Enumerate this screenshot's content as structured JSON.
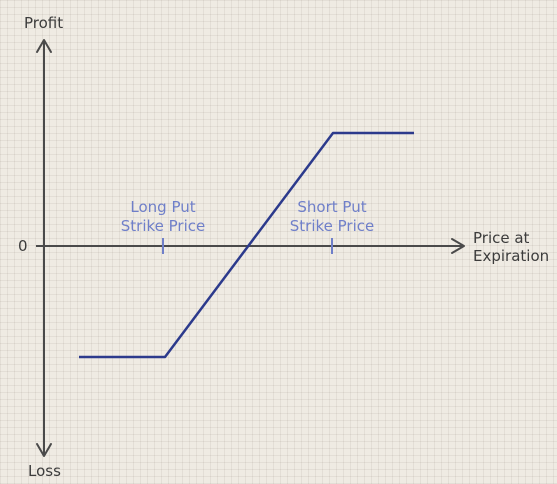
{
  "axes": {
    "y_top_label": "Profit",
    "y_bottom_label": "Loss",
    "zero_label": "0",
    "x_label_line1": "Price at",
    "x_label_line2": "Expiration"
  },
  "strikes": {
    "long_put": {
      "line1": "Long Put",
      "line2": "Strike Price"
    },
    "short_put": {
      "line1": "Short Put",
      "line2": "Strike Price"
    }
  },
  "colors": {
    "axis": "#4a4a4a",
    "payoff_line": "#2c3a8c",
    "strike_label": "#6f7fc9"
  }
}
